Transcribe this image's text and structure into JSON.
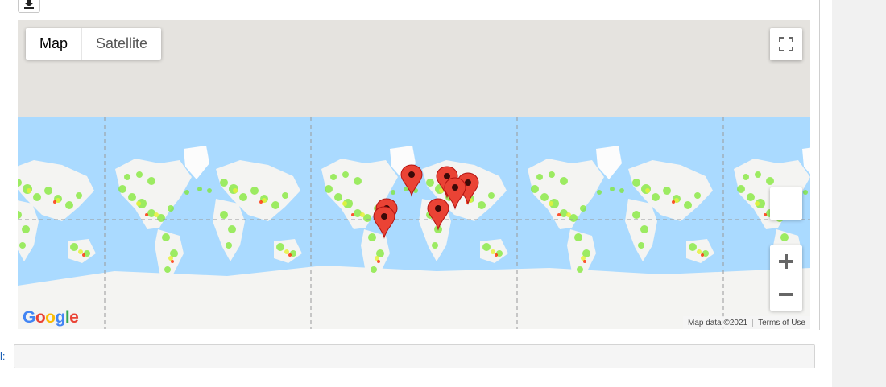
{
  "toolbar": {
    "download_icon": "download-icon"
  },
  "map": {
    "map_types": [
      "Map",
      "Satellite"
    ],
    "active_map_type": "Map",
    "zoom_in_symbol": "+",
    "zoom_out_symbol": "−",
    "attribution": "Map data ©2021",
    "terms": "Terms of Use",
    "logo_text": "Google",
    "colors": {
      "water": "#aadaff",
      "land": "#f5f5f5",
      "top_background": "#e5e3df",
      "marker": "#ea4335",
      "heat_low": "#7fe832",
      "heat_mid": "#e6f23c",
      "heat_high": "#ff2a00"
    }
  },
  "field": {
    "label": "l:",
    "value": ""
  }
}
